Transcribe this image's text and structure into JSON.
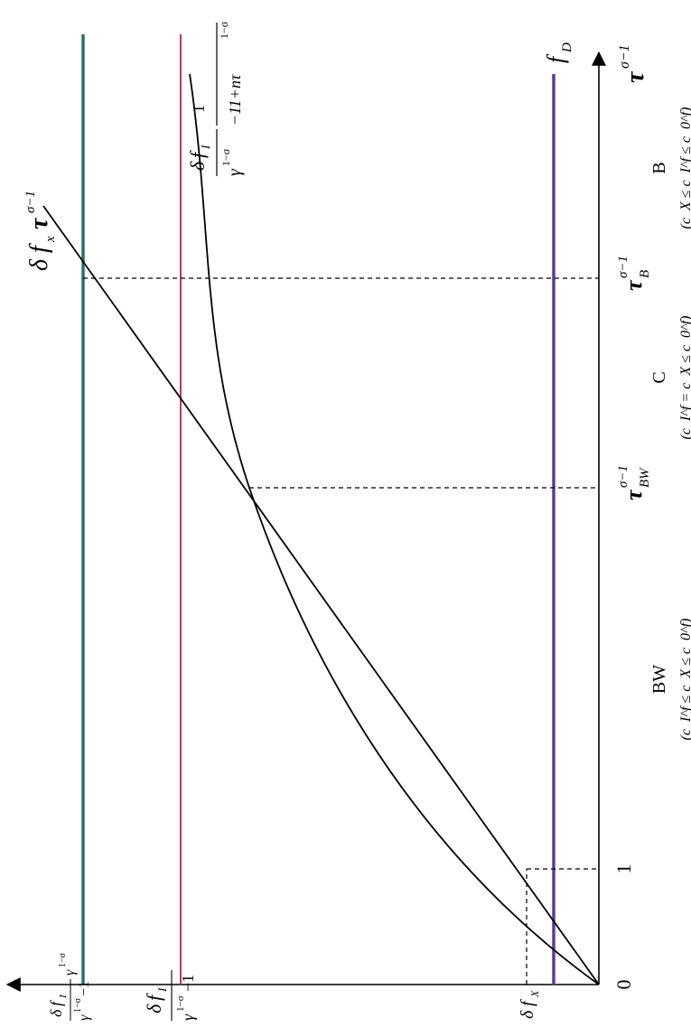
{
  "figure": {
    "origin_label": "0",
    "tick_one": "1",
    "delta": "δ",
    "f_sym": "f",
    "tau": "τ",
    "gamma": "γ",
    "one": "1",
    "minus_one": "−1",
    "one_minus_sigma": "1−σ",
    "sigma_minus_one": "σ−1",
    "sub_I": "I",
    "sub_x": "x",
    "sub_X": "X",
    "sub_D": "D",
    "sub_B": "B",
    "sub_BW": "BW",
    "curve_denominator_tail": "−11+nτ",
    "region_bw_label": "BW",
    "region_bw_condition": "(c_I^f ≤ c_X ≤ c_0^f)",
    "region_c_label": "C",
    "region_c_condition": "(c_I^f = c_X ≤ c_0^f)",
    "region_b_label": "B",
    "region_b_condition": "(c_X ≤ c_I^f ≤ c_0^f)",
    "c_letter": "c",
    "c_upper": "C",
    "le": "≤",
    "eq": "=",
    "sup_f": "f",
    "sub_0": "0",
    "open_paren": "(",
    "close_paren": ")",
    "colors": {
      "axis": "#000000",
      "teal_line": "#2e6e68",
      "red_line": "#b0405a",
      "purple_line": "#5a3e96"
    }
  }
}
